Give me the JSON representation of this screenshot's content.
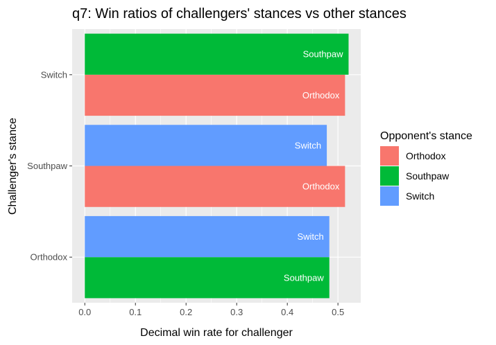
{
  "chart_data": {
    "type": "bar",
    "orientation": "horizontal",
    "title": "q7: Win ratios of challengers' stances vs other stances",
    "xlabel": "Decimal win rate for challenger",
    "ylabel": "Challenger's stance",
    "categories": [
      "Orthodox",
      "Southpaw",
      "Switch"
    ],
    "xlim": [
      -0.025,
      0.545
    ],
    "xticks": [
      0.0,
      0.1,
      0.2,
      0.3,
      0.4,
      0.5
    ],
    "xtick_labels": [
      "0.0",
      "0.1",
      "0.2",
      "0.3",
      "0.4",
      "0.5"
    ],
    "grid": true,
    "legend": {
      "title": "Opponent's stance",
      "placement": "right",
      "entries": [
        {
          "name": "Orthodox",
          "color": "#F8766D"
        },
        {
          "name": "Southpaw",
          "color": "#00BA38"
        },
        {
          "name": "Switch",
          "color": "#619CFF"
        }
      ]
    },
    "groups": [
      {
        "category": "Orthodox",
        "bars": [
          {
            "opponent": "Southpaw",
            "value": 0.483,
            "label": "Southpaw",
            "color": "#00BA38"
          },
          {
            "opponent": "Switch",
            "value": 0.483,
            "label": "Switch",
            "color": "#619CFF"
          }
        ]
      },
      {
        "category": "Southpaw",
        "bars": [
          {
            "opponent": "Orthodox",
            "value": 0.514,
            "label": "Orthodox",
            "color": "#F8766D"
          },
          {
            "opponent": "Switch",
            "value": 0.478,
            "label": "Switch",
            "color": "#619CFF"
          }
        ]
      },
      {
        "category": "Switch",
        "bars": [
          {
            "opponent": "Orthodox",
            "value": 0.514,
            "label": "Orthodox",
            "color": "#F8766D"
          },
          {
            "opponent": "Southpaw",
            "value": 0.521,
            "label": "Southpaw",
            "color": "#00BA38"
          }
        ]
      }
    ]
  }
}
